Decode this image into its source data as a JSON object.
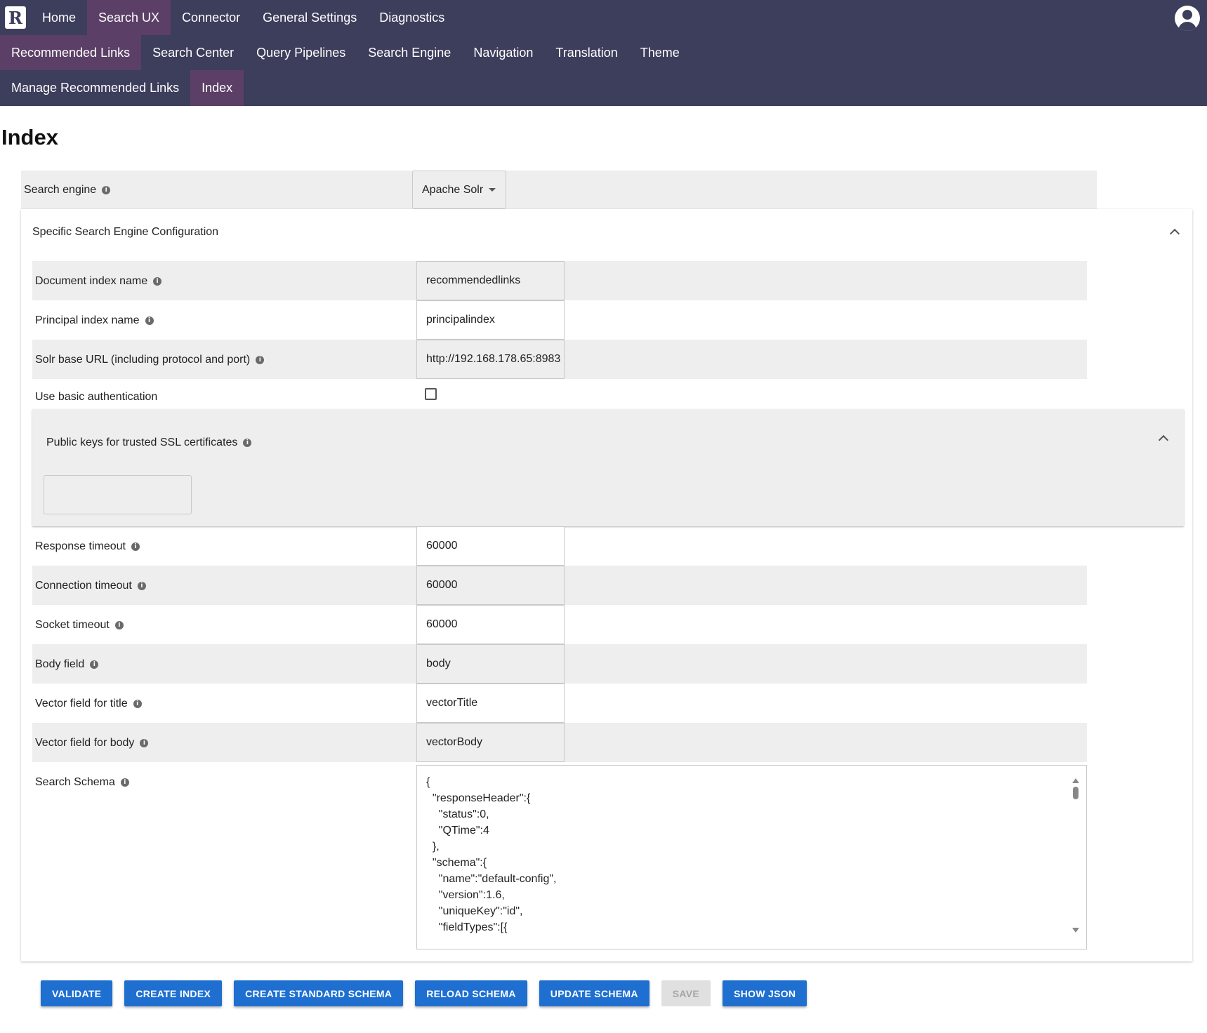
{
  "nav": {
    "row1": [
      "Home",
      "Search UX",
      "Connector",
      "General Settings",
      "Diagnostics"
    ],
    "row1_active": "Search UX",
    "row2": [
      "Recommended Links",
      "Search Center",
      "Query Pipelines",
      "Search Engine",
      "Navigation",
      "Translation",
      "Theme"
    ],
    "row2_active": "Recommended Links",
    "row3": [
      "Manage Recommended Links",
      "Index"
    ],
    "row3_active": "Index",
    "logo_letter": "R"
  },
  "page": {
    "title": "Index"
  },
  "search_engine": {
    "label": "Search engine",
    "value": "Apache Solr"
  },
  "panel": {
    "title": "Specific Search Engine Configuration",
    "fields": {
      "document_index": {
        "label": "Document index name",
        "value": "recommendedlinks"
      },
      "principal_index": {
        "label": "Principal index name",
        "value": "principalindex"
      },
      "solr_url": {
        "label": "Solr base URL (including protocol and port)",
        "value": "http://192.168.178.65:8983"
      },
      "basic_auth": {
        "label": "Use basic authentication",
        "checked": false
      },
      "ssl": {
        "label": "Public keys for trusted SSL certificates",
        "value": ""
      },
      "response_timeout": {
        "label": "Response timeout",
        "value": "60000"
      },
      "connection_timeout": {
        "label": "Connection timeout",
        "value": "60000"
      },
      "socket_timeout": {
        "label": "Socket timeout",
        "value": "60000"
      },
      "body_field": {
        "label": "Body field",
        "value": "body"
      },
      "vector_title": {
        "label": "Vector field for title",
        "value": "vectorTitle"
      },
      "vector_body": {
        "label": "Vector field for body",
        "value": "vectorBody"
      },
      "search_schema": {
        "label": "Search Schema",
        "value": "{\n  \"responseHeader\":{\n    \"status\":0,\n    \"QTime\":4\n  },\n  \"schema\":{\n    \"name\":\"default-config\",\n    \"version\":1.6,\n    \"uniqueKey\":\"id\",\n    \"fieldTypes\":[{"
      }
    }
  },
  "buttons": {
    "validate": "VALIDATE",
    "create_index": "CREATE INDEX",
    "create_standard_schema": "CREATE STANDARD SCHEMA",
    "reload_schema": "RELOAD SCHEMA",
    "update_schema": "UPDATE SCHEMA",
    "save": "SAVE",
    "show_json": "SHOW JSON"
  },
  "colors": {
    "nav_bg": "#3d3d5c",
    "nav_active": "#5c3f66",
    "primary": "#1e6fd0",
    "band": "#eeeeee"
  }
}
